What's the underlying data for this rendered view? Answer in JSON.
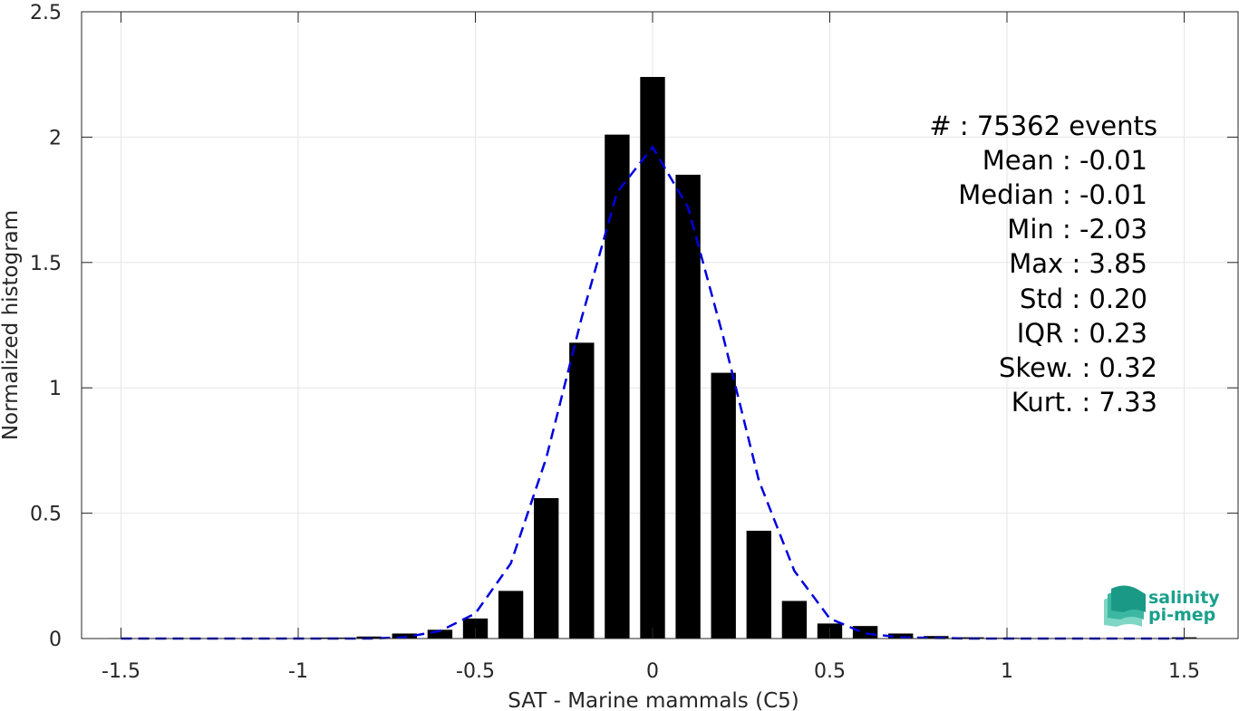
{
  "chart_data": {
    "type": "bar",
    "xlabel": "SAT - Marine mammals (C5)",
    "ylabel": "Normalized histogram",
    "xlim": [
      -1.55,
      1.62
    ],
    "ylim": [
      0,
      2.5
    ],
    "xticks": [
      -1.5,
      -1,
      -0.5,
      0,
      0.5,
      1,
      1.5
    ],
    "xtick_labels": [
      "-1.5",
      "-1",
      "-0.5",
      "0",
      "0.5",
      "1",
      "1.5"
    ],
    "yticks": [
      0,
      0.5,
      1,
      1.5,
      2,
      2.5
    ],
    "ytick_labels": [
      "0",
      "0.5",
      "1",
      "1.5",
      "2",
      "2.5"
    ],
    "grid": true,
    "bar_width": 0.07,
    "x": [
      -1.5,
      -1.4,
      -1.3,
      -1.2,
      -1.1,
      -1.0,
      -0.9,
      -0.8,
      -0.7,
      -0.6,
      -0.5,
      -0.4,
      -0.3,
      -0.2,
      -0.1,
      0.0,
      0.1,
      0.2,
      0.3,
      0.4,
      0.5,
      0.6,
      0.7,
      0.8,
      0.9,
      1.0,
      1.1,
      1.2,
      1.3,
      1.4,
      1.5
    ],
    "values": [
      0.002,
      0.002,
      0.002,
      0.002,
      0.002,
      0.002,
      0.004,
      0.008,
      0.02,
      0.035,
      0.08,
      0.19,
      0.56,
      1.18,
      2.01,
      2.24,
      1.85,
      1.06,
      0.43,
      0.15,
      0.06,
      0.05,
      0.02,
      0.01,
      0.005,
      0.003,
      0.002,
      0.002,
      0.002,
      0.002,
      0.005
    ],
    "bar_color": "#000000",
    "fit_line": {
      "style": "dashed",
      "color": "#0000dd",
      "x": [
        -1.5,
        -1.4,
        -1.3,
        -1.2,
        -1.1,
        -1.0,
        -0.9,
        -0.8,
        -0.7,
        -0.6,
        -0.5,
        -0.4,
        -0.3,
        -0.2,
        -0.1,
        0.0,
        0.1,
        0.2,
        0.3,
        0.4,
        0.5,
        0.6,
        0.7,
        0.8,
        0.9,
        1.0,
        1.1,
        1.2,
        1.3,
        1.4,
        1.5
      ],
      "y": [
        0,
        0,
        0,
        0,
        0,
        0,
        0,
        0,
        0.005,
        0.03,
        0.1,
        0.3,
        0.72,
        1.28,
        1.78,
        1.96,
        1.72,
        1.2,
        0.63,
        0.27,
        0.08,
        0.02,
        0.005,
        0.002,
        0,
        0,
        0,
        0,
        0,
        0,
        0
      ]
    }
  },
  "stats": [
    "#  : 75362 events",
    "Mean : -0.01",
    "Median : -0.01",
    "Min : -2.03",
    "Max : 3.85",
    "Std : 0.20",
    "IQR : 0.23",
    "Skew. : 0.32",
    "Kurt. : 7.33"
  ],
  "logo": {
    "line1": "salinity",
    "line2": "pi-mep",
    "color": "#1aa08c"
  }
}
